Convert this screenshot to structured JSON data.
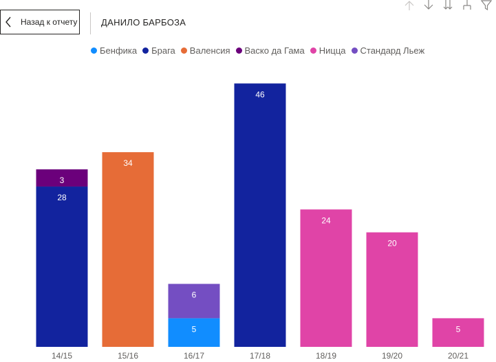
{
  "header": {
    "back_label": "Назад к отчету",
    "title": "ДАНИЛО БАРБОЗА"
  },
  "toolbar": {
    "icons": [
      "arrow-up-icon",
      "arrow-down-icon",
      "double-arrow-down-icon",
      "expand-hierarchy-icon",
      "filter-icon"
    ]
  },
  "chart_data": {
    "type": "bar",
    "stacked": true,
    "title": "ДАНИЛО БАРБОЗА",
    "xlabel": "",
    "ylabel": "",
    "ylim": [
      0,
      50
    ],
    "categories": [
      "14/15",
      "15/16",
      "16/17",
      "17/18",
      "18/19",
      "19/20",
      "20/21"
    ],
    "series": [
      {
        "name": "Бенфика",
        "color": "#118DFF",
        "values": [
          0,
          0,
          5,
          0,
          0,
          0,
          0
        ]
      },
      {
        "name": "Брага",
        "color": "#12239E",
        "values": [
          28,
          0,
          0,
          46,
          0,
          0,
          0
        ]
      },
      {
        "name": "Валенсия",
        "color": "#E66C37",
        "values": [
          0,
          34,
          0,
          0,
          0,
          0,
          0
        ]
      },
      {
        "name": "Васко да Гама",
        "color": "#6B007B",
        "values": [
          3,
          0,
          0,
          0,
          0,
          0,
          0
        ]
      },
      {
        "name": "Ницца",
        "color": "#E044A7",
        "values": [
          0,
          0,
          0,
          0,
          24,
          20,
          5
        ]
      },
      {
        "name": "Стандард Льеж",
        "color": "#744EC2",
        "values": [
          0,
          0,
          6,
          0,
          0,
          0,
          0
        ]
      }
    ],
    "legend_position": "top-left",
    "grid": false
  }
}
